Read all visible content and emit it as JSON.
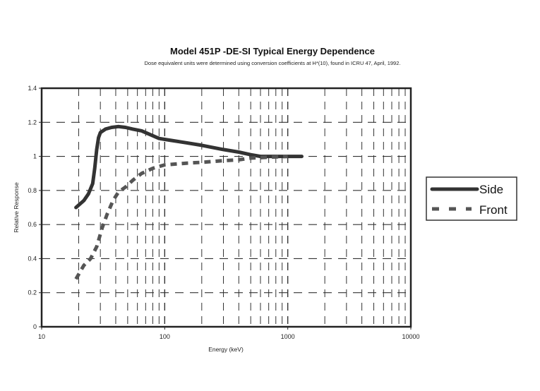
{
  "chart_data": {
    "type": "line",
    "title": "Model 451P -DE-SI Typical Energy Dependence",
    "subtitle": "Dose equivalent units were determined using conversion coefficients at H*(10), found in ICRU 47, April, 1992.",
    "xlabel": "Energy (keV)",
    "ylabel": "Relative Response",
    "x_scale": "log",
    "xlim": [
      10,
      10000
    ],
    "ylim": [
      0,
      1.4
    ],
    "x_ticks": [
      10,
      100,
      1000,
      10000
    ],
    "x_tick_labels": [
      "10",
      "100",
      "1000",
      "10000"
    ],
    "y_ticks": [
      0,
      0.2,
      0.4,
      0.6,
      0.8,
      1,
      1.2,
      1.4
    ],
    "y_tick_labels": [
      "0",
      "0.2",
      "0.4",
      "0.6",
      "0.8",
      "1",
      "1.2",
      "1.4"
    ],
    "grid": true,
    "legend_position": "right",
    "series": [
      {
        "name": "Side",
        "style": "solid",
        "color": "#333333",
        "x": [
          19,
          22,
          24,
          26,
          27,
          28,
          29,
          30,
          33,
          37,
          42,
          48,
          55,
          65,
          75,
          90,
          110,
          150,
          200,
          300,
          400,
          500,
          600,
          700,
          800,
          1000,
          1300
        ],
        "y": [
          0.7,
          0.74,
          0.78,
          0.84,
          0.93,
          1.04,
          1.11,
          1.14,
          1.16,
          1.17,
          1.175,
          1.17,
          1.16,
          1.15,
          1.13,
          1.105,
          1.095,
          1.08,
          1.065,
          1.04,
          1.025,
          1.01,
          1.0,
          1.0,
          1.0,
          1.0,
          1.0
        ]
      },
      {
        "name": "Front",
        "style": "dashed",
        "color": "#555555",
        "x": [
          19,
          22,
          25,
          28,
          31,
          34,
          38,
          42,
          48,
          55,
          65,
          80,
          100,
          150,
          200,
          300,
          400,
          500,
          700,
          1000
        ],
        "y": [
          0.28,
          0.36,
          0.4,
          0.47,
          0.58,
          0.66,
          0.74,
          0.79,
          0.82,
          0.86,
          0.9,
          0.93,
          0.95,
          0.96,
          0.965,
          0.975,
          0.98,
          0.99,
          0.995,
          1.0
        ]
      }
    ]
  }
}
